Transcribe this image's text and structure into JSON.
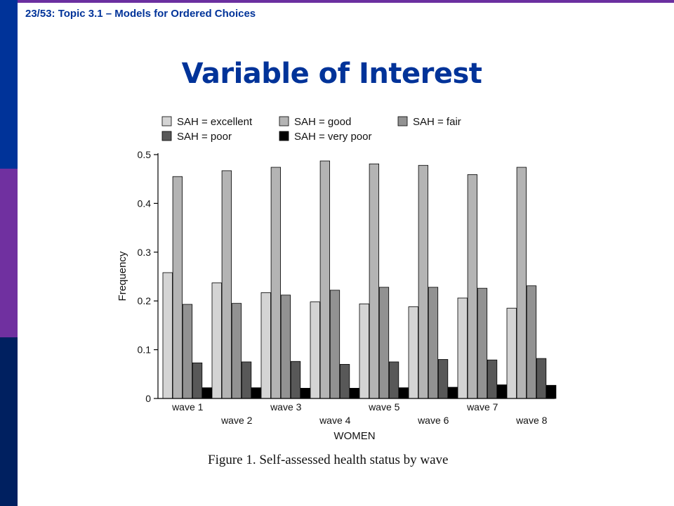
{
  "header": {
    "breadcrumb": "23/53: Topic 3.1 – Models for Ordered Choices",
    "title": "Variable of Interest"
  },
  "colors": {
    "header_text": "#003399",
    "top_rule": "#6b2fa0",
    "side_bar_segments": [
      "#003399",
      "#7030a0",
      "#002060"
    ]
  },
  "figure_caption": "Figure 1. Self-assessed health status by wave",
  "chart_data": {
    "type": "bar",
    "categories": [
      "wave 1",
      "wave 2",
      "wave 3",
      "wave 4",
      "wave 5",
      "wave 6",
      "wave 7",
      "wave 8"
    ],
    "series": [
      {
        "name": "SAH = excellent",
        "color": "#d4d4d4",
        "values": [
          0.258,
          0.237,
          0.217,
          0.198,
          0.194,
          0.188,
          0.206,
          0.185
        ]
      },
      {
        "name": "SAH = good",
        "color": "#b4b4b4",
        "values": [
          0.455,
          0.467,
          0.474,
          0.487,
          0.481,
          0.478,
          0.459,
          0.474
        ]
      },
      {
        "name": "SAH = fair",
        "color": "#929292",
        "values": [
          0.193,
          0.195,
          0.212,
          0.222,
          0.228,
          0.228,
          0.226,
          0.231
        ]
      },
      {
        "name": "SAH = poor",
        "color": "#585858",
        "values": [
          0.073,
          0.075,
          0.076,
          0.07,
          0.075,
          0.08,
          0.079,
          0.082
        ]
      },
      {
        "name": "SAH = very poor",
        "color": "#000000",
        "values": [
          0.022,
          0.022,
          0.021,
          0.021,
          0.022,
          0.023,
          0.028,
          0.027
        ]
      }
    ],
    "xlabel": "WOMEN",
    "ylabel": "Frequency",
    "ylim": [
      0,
      0.5
    ],
    "yticks": [
      "0",
      "0.1",
      "0.2",
      "0.3",
      "0.4",
      "0.5"
    ],
    "grid": false,
    "legend_position": "top"
  }
}
